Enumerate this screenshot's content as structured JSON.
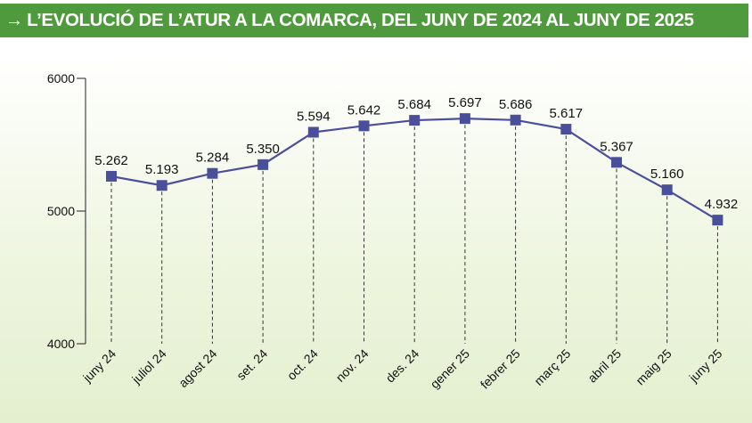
{
  "chart_data": {
    "type": "line",
    "title": "L’EVOLUCIÓ DE L’ATUR A LA COMARCA, DEL JUNY DE 2024 AL JUNY DE 2025",
    "title_prefix": "→",
    "categories": [
      "juny 24",
      "juliol 24",
      "agost 24",
      "set. 24",
      "oct. 24",
      "nov. 24",
      "des. 24",
      "gener 25",
      "febrer 25",
      "març 25",
      "abril 25",
      "maig 25",
      "juny 25"
    ],
    "values": [
      5262,
      5193,
      5284,
      5350,
      5594,
      5642,
      5684,
      5697,
      5686,
      5617,
      5367,
      5160,
      4932
    ],
    "value_labels": [
      "5.262",
      "5.193",
      "5.284",
      "5.350",
      "5.594",
      "5.642",
      "5.684",
      "5.697",
      "5.686",
      "5.617",
      "5.367",
      "5.160",
      "4.932"
    ],
    "yticks": [
      "4000",
      "5000",
      "6000"
    ],
    "ytick_values": [
      4000,
      5000,
      6000
    ],
    "ylim": [
      4000,
      6000
    ],
    "xlabel": "",
    "ylabel": "",
    "grid": "dashed vertical drop lines",
    "line_color": "#4a4f9c",
    "marker_color": "#4a4f9c",
    "banner_color": "#4f9a3c"
  }
}
